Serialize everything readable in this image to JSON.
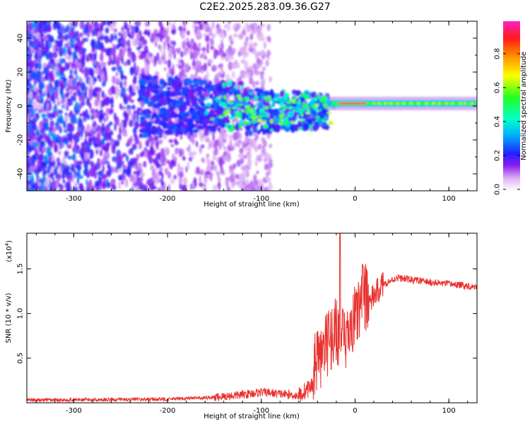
{
  "title": "C2E2.2025.283.09.36.G27",
  "chart_data": [
    {
      "type": "heatmap",
      "name": "spectrogram",
      "xlabel": "Height of straight line (km)",
      "ylabel": "Frequency (Hz)",
      "xlim": [
        -350,
        130
      ],
      "ylim": [
        -50,
        50
      ],
      "xticks": [
        -300,
        -200,
        -100,
        0,
        100
      ],
      "xtick_labels": [
        "-300",
        "-200",
        "-100",
        "0",
        "100"
      ],
      "yticks": [
        -40,
        -20,
        0,
        20,
        40
      ],
      "ytick_labels": [
        "-40",
        "-20",
        "0",
        "20",
        "40"
      ],
      "colorbar": {
        "label": "Normalized spectral amplitude",
        "ticks": [
          0.0,
          0.2,
          0.4,
          0.6,
          0.8
        ],
        "tick_labels": [
          "0.0",
          "0.2",
          "0.4",
          "0.6",
          "0.8"
        ],
        "range": [
          0,
          1
        ]
      },
      "tone_frequency_hz": 1.5,
      "tone_start_km": -30,
      "noise_region_km": [
        -350,
        -150
      ]
    },
    {
      "type": "line",
      "name": "snr",
      "xlabel": "Height of straight line (km)",
      "ylabel": "SNR (10 * v/v)",
      "yscale_label": "(x10",
      "yscale_exp": "4",
      "xlim": [
        -350,
        130
      ],
      "ylim": [
        0,
        1.9
      ],
      "xticks": [
        -300,
        -200,
        -100,
        0,
        100
      ],
      "xtick_labels": [
        "-300",
        "-200",
        "-100",
        "0",
        "100"
      ],
      "yticks": [
        0.5,
        1.0,
        1.5
      ],
      "ytick_labels": [
        "0.5",
        "1.0",
        "1.5"
      ],
      "color": "#e8312e",
      "profile_x": [
        -350,
        -200,
        -150,
        -120,
        -100,
        -80,
        -60,
        -45,
        -35,
        -25,
        -20,
        -15,
        -10,
        -5,
        0,
        10,
        20,
        30,
        45,
        60,
        80,
        100,
        130
      ],
      "profile_y": [
        0.03,
        0.04,
        0.06,
        0.09,
        0.12,
        0.1,
        0.08,
        0.2,
        0.4,
        0.6,
        0.65,
        0.6,
        0.45,
        0.7,
        0.8,
        1.0,
        1.2,
        1.33,
        1.4,
        1.38,
        1.35,
        1.33,
        1.3
      ]
    }
  ]
}
